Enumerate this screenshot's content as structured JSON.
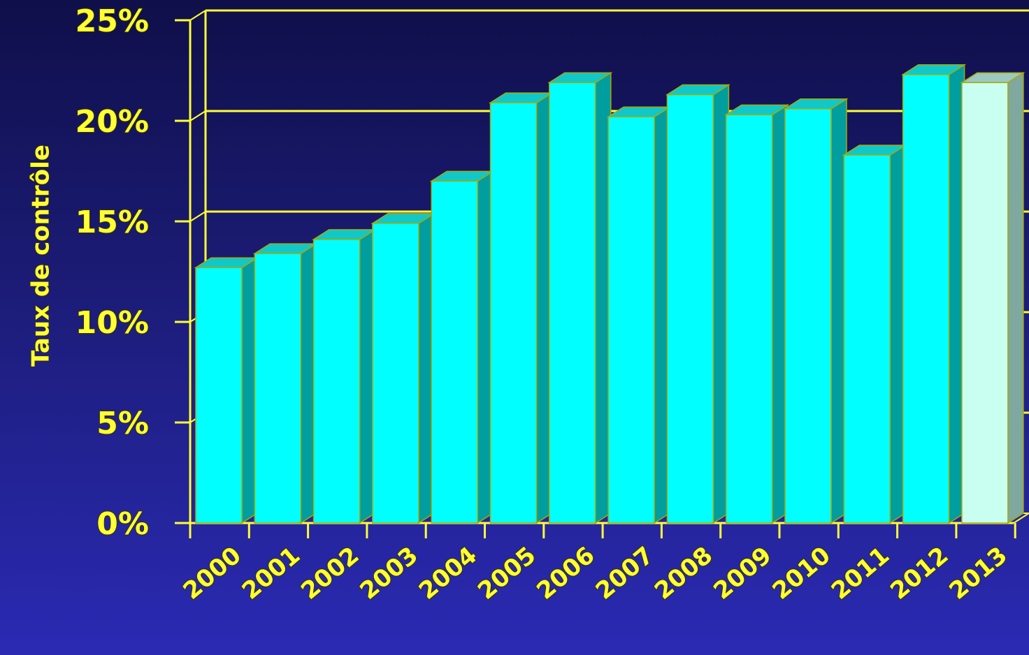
{
  "chart_data": {
    "type": "bar",
    "categories": [
      "2000",
      "2001",
      "2002",
      "2003",
      "2004",
      "2005",
      "2006",
      "2007",
      "2008",
      "2009",
      "2010",
      "2011",
      "2012",
      "2013"
    ],
    "values": [
      12.7,
      13.4,
      14.1,
      14.9,
      17.0,
      20.9,
      21.9,
      20.2,
      21.3,
      20.3,
      20.6,
      18.3,
      22.3,
      21.9
    ],
    "title": "",
    "xlabel": "",
    "ylabel": "Taux de contrôle",
    "ylim": [
      0,
      25
    ],
    "yticks": [
      "0%",
      "5%",
      "10%",
      "15%",
      "20%",
      "25%"
    ],
    "grid": true,
    "legend": "none",
    "colors": {
      "bar_front": "#00ffff",
      "bar_side": "#009e9e",
      "bar_top": "#11c8c8",
      "highlight_front": "#c8fff0",
      "highlight_side": "#7fa8a0",
      "highlight_top": "#9cc8c0",
      "axis": "#ffff33",
      "text": "#ffff33"
    },
    "highlighted_category": "2013"
  }
}
